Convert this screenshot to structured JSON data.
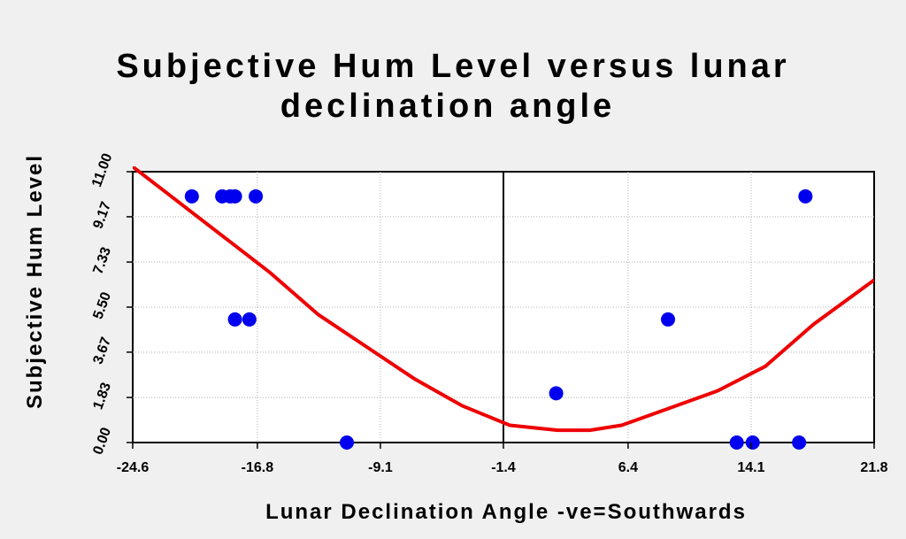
{
  "chart_data": {
    "type": "scatter",
    "title_lines": [
      "Subjective Hum Level versus lunar",
      "declination angle"
    ],
    "xlabel": "Lunar Declination Angle -ve=Southwards",
    "ylabel": "Subjective Hum Level",
    "xlim": [
      -24.6,
      21.8
    ],
    "ylim": [
      0.0,
      11.0
    ],
    "x_ticks": [
      "-24.6",
      "-16.8",
      "-9.1",
      "-1.4",
      "6.4",
      "14.1",
      "21.8"
    ],
    "y_ticks": [
      "0.00",
      "1.83",
      "3.67",
      "5.50",
      "7.33",
      "9.17",
      "11.00"
    ],
    "x_tick_values": [
      -24.6,
      -16.8,
      -9.1,
      -1.4,
      6.4,
      14.1,
      21.8
    ],
    "y_tick_values": [
      0.0,
      1.83,
      3.67,
      5.5,
      7.33,
      9.17,
      11.0
    ],
    "grid": true,
    "vertical_marker_x": -1.4,
    "points": [
      {
        "x": -20.9,
        "y": 10.0
      },
      {
        "x": -19.0,
        "y": 10.0
      },
      {
        "x": -18.5,
        "y": 10.0
      },
      {
        "x": -18.2,
        "y": 10.0
      },
      {
        "x": -16.9,
        "y": 10.0
      },
      {
        "x": -18.2,
        "y": 5.0
      },
      {
        "x": -17.3,
        "y": 5.0
      },
      {
        "x": -11.2,
        "y": 0.0
      },
      {
        "x": 1.9,
        "y": 2.0
      },
      {
        "x": 8.9,
        "y": 5.0
      },
      {
        "x": 13.2,
        "y": 0.0
      },
      {
        "x": 14.2,
        "y": 0.0
      },
      {
        "x": 17.1,
        "y": 0.0
      },
      {
        "x": 17.5,
        "y": 10.0
      }
    ],
    "point_color": "#0000ee",
    "fit": {
      "type": "quadratic",
      "x": [
        -24.6,
        -22.0,
        -19.0,
        -16.0,
        -13.0,
        -10.0,
        -7.0,
        -4.0,
        -1.0,
        2.0,
        4.0,
        6.0,
        9.0,
        12.0,
        15.0,
        18.0,
        21.8
      ],
      "y": [
        11.2,
        9.9,
        8.4,
        6.9,
        5.2,
        3.9,
        2.6,
        1.5,
        0.7,
        0.5,
        0.5,
        0.7,
        1.4,
        2.1,
        3.1,
        4.8,
        6.6
      ],
      "color": "#ee0000"
    }
  }
}
